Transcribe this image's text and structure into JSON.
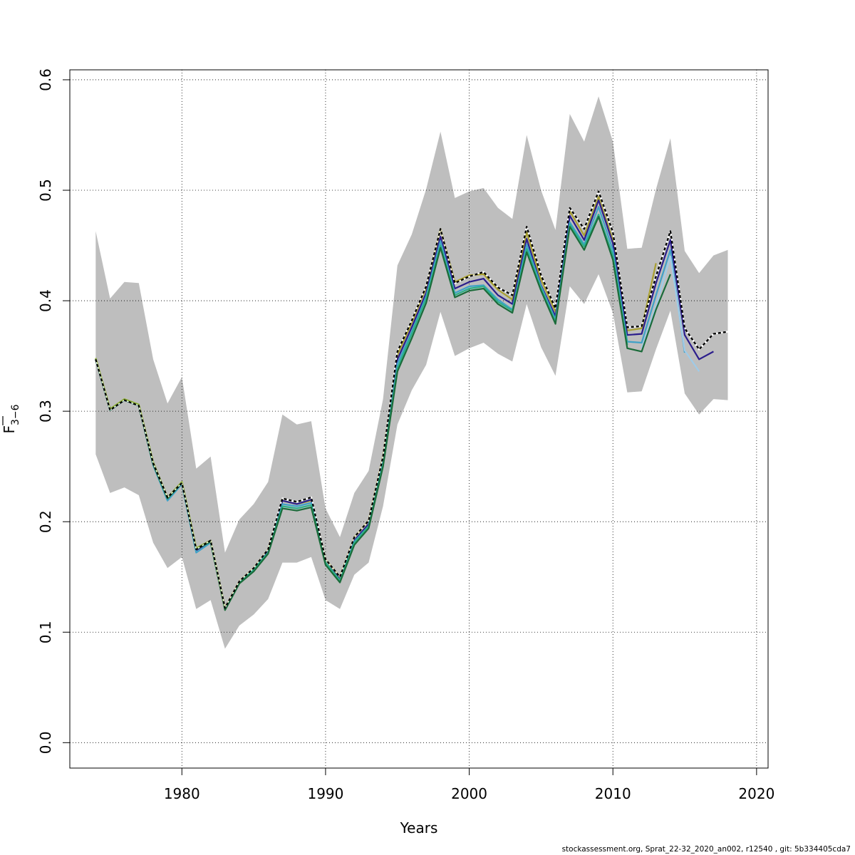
{
  "footer": "stockassessment.org, Sprat_22-32_2020_an002, r12540 , git: 5b334405cda7",
  "chart_data": {
    "type": "line",
    "title": "",
    "xlabel": "Years",
    "ylabel": "F",
    "ylabel_subscript": "3−6",
    "xlim": [
      1972.2,
      2020.8
    ],
    "ylim": [
      -0.023,
      0.609
    ],
    "xticks": [
      1980,
      1990,
      2000,
      2010,
      2020
    ],
    "xtick_labels": [
      "1980",
      "1990",
      "2000",
      "2010",
      "2020"
    ],
    "yticks": [
      0.0,
      0.1,
      0.2,
      0.3,
      0.4,
      0.5,
      0.6
    ],
    "ytick_labels": [
      "0.0",
      "0.1",
      "0.2",
      "0.3",
      "0.4",
      "0.5",
      "0.6"
    ],
    "grid": true,
    "band": {
      "color": "#bebebe",
      "x": [
        1974,
        1975,
        1976,
        1977,
        1978,
        1979,
        1980,
        1981,
        1982,
        1983,
        1984,
        1985,
        1986,
        1987,
        1988,
        1989,
        1990,
        1991,
        1992,
        1993,
        1994,
        1995,
        1996,
        1997,
        1998,
        1999,
        2000,
        2001,
        2002,
        2003,
        2004,
        2005,
        2006,
        2007,
        2008,
        2009,
        2010,
        2011,
        2012,
        2013,
        2014,
        2015,
        2016,
        2017,
        2018
      ],
      "upper": [
        0.463,
        0.402,
        0.417,
        0.416,
        0.347,
        0.307,
        0.331,
        0.248,
        0.259,
        0.172,
        0.202,
        0.216,
        0.236,
        0.297,
        0.288,
        0.291,
        0.212,
        0.186,
        0.226,
        0.246,
        0.311,
        0.432,
        0.46,
        0.501,
        0.553,
        0.493,
        0.499,
        0.502,
        0.484,
        0.474,
        0.55,
        0.5,
        0.464,
        0.569,
        0.544,
        0.585,
        0.544,
        0.447,
        0.448,
        0.501,
        0.547,
        0.445,
        0.425,
        0.441,
        0.446
      ],
      "lower": [
        0.261,
        0.226,
        0.231,
        0.224,
        0.181,
        0.158,
        0.168,
        0.121,
        0.129,
        0.085,
        0.106,
        0.116,
        0.13,
        0.163,
        0.163,
        0.168,
        0.129,
        0.121,
        0.152,
        0.163,
        0.214,
        0.288,
        0.319,
        0.342,
        0.39,
        0.35,
        0.357,
        0.362,
        0.352,
        0.345,
        0.397,
        0.358,
        0.332,
        0.413,
        0.397,
        0.424,
        0.389,
        0.317,
        0.318,
        0.356,
        0.391,
        0.316,
        0.297,
        0.311,
        0.31
      ]
    },
    "series": [
      {
        "color": "#000000",
        "width": 2.2,
        "dashed": true,
        "x": [
          1974,
          1975,
          1976,
          1977,
          1978,
          1979,
          1980,
          1981,
          1982,
          1983,
          1984,
          1985,
          1986,
          1987,
          1988,
          1989,
          1990,
          1991,
          1992,
          1993,
          1994,
          1995,
          1996,
          1997,
          1998,
          1999,
          2000,
          2001,
          2002,
          2003,
          2004,
          2005,
          2006,
          2007,
          2008,
          2009,
          2010,
          2011,
          2012,
          2013,
          2014,
          2015,
          2016,
          2017,
          2018
        ],
        "values": [
          0.347,
          0.301,
          0.31,
          0.305,
          0.253,
          0.222,
          0.235,
          0.175,
          0.183,
          0.122,
          0.146,
          0.158,
          0.175,
          0.221,
          0.218,
          0.222,
          0.166,
          0.15,
          0.186,
          0.201,
          0.259,
          0.354,
          0.382,
          0.413,
          0.465,
          0.416,
          0.422,
          0.426,
          0.412,
          0.405,
          0.467,
          0.423,
          0.393,
          0.484,
          0.465,
          0.499,
          0.462,
          0.376,
          0.377,
          0.422,
          0.463,
          0.375,
          0.356,
          0.37,
          0.372
        ]
      },
      {
        "color": "#a9a031",
        "width": 2.2,
        "dashed": false,
        "x": [
          1974,
          1975,
          1976,
          1977,
          1978,
          1979,
          1980,
          1981,
          1982,
          1983,
          1984,
          1985,
          1986,
          1987,
          1988,
          1989,
          1990,
          1991,
          1992,
          1993,
          1994,
          1995,
          1996,
          1997,
          1998,
          1999,
          2000,
          2001,
          2002,
          2003,
          2004,
          2005,
          2006,
          2007,
          2008,
          2009,
          2010,
          2011,
          2012,
          2013
        ],
        "values": [
          0.348,
          0.302,
          0.311,
          0.306,
          0.253,
          0.222,
          0.236,
          0.176,
          0.183,
          0.122,
          0.146,
          0.158,
          0.175,
          0.219,
          0.216,
          0.219,
          0.166,
          0.15,
          0.186,
          0.201,
          0.259,
          0.351,
          0.38,
          0.412,
          0.465,
          0.417,
          0.423,
          0.424,
          0.41,
          0.401,
          0.462,
          0.419,
          0.39,
          0.481,
          0.459,
          0.494,
          0.455,
          0.373,
          0.375,
          0.434
        ]
      },
      {
        "color": "#2b1d8c",
        "width": 2.2,
        "dashed": false,
        "x": [
          1974,
          1975,
          1976,
          1977,
          1978,
          1979,
          1980,
          1981,
          1982,
          1983,
          1984,
          1985,
          1986,
          1987,
          1988,
          1989,
          1990,
          1991,
          1992,
          1993,
          1994,
          1995,
          1996,
          1997,
          1998,
          1999,
          2000,
          2001,
          2002,
          2003,
          2004,
          2005,
          2006,
          2007,
          2008,
          2009,
          2010,
          2011,
          2012,
          2013,
          2014,
          2015,
          2016,
          2017
        ],
        "values": [
          0.347,
          0.301,
          0.31,
          0.305,
          0.252,
          0.221,
          0.235,
          0.174,
          0.182,
          0.121,
          0.145,
          0.157,
          0.173,
          0.219,
          0.216,
          0.22,
          0.163,
          0.148,
          0.183,
          0.198,
          0.255,
          0.347,
          0.376,
          0.407,
          0.458,
          0.411,
          0.417,
          0.42,
          0.405,
          0.397,
          0.456,
          0.414,
          0.386,
          0.477,
          0.455,
          0.491,
          0.452,
          0.369,
          0.37,
          0.416,
          0.455,
          0.369,
          0.347,
          0.354
        ]
      },
      {
        "color": "#3fa1c7",
        "width": 2.2,
        "dashed": false,
        "x": [
          1974,
          1975,
          1976,
          1977,
          1978,
          1979,
          1980,
          1981,
          1982,
          1983,
          1984,
          1985,
          1986,
          1987,
          1988,
          1989,
          1990,
          1991,
          1992,
          1993,
          1994,
          1995,
          1996,
          1997,
          1998,
          1999,
          2000,
          2001,
          2002,
          2003,
          2004,
          2005,
          2006,
          2007,
          2008,
          2009,
          2010,
          2011,
          2012,
          2013,
          2014,
          2015
        ],
        "values": [
          0.347,
          0.301,
          0.31,
          0.305,
          0.251,
          0.219,
          0.234,
          0.172,
          0.181,
          0.121,
          0.145,
          0.157,
          0.172,
          0.216,
          0.214,
          0.217,
          0.163,
          0.147,
          0.182,
          0.196,
          0.254,
          0.343,
          0.372,
          0.404,
          0.454,
          0.407,
          0.413,
          0.414,
          0.401,
          0.392,
          0.451,
          0.413,
          0.383,
          0.471,
          0.451,
          0.485,
          0.446,
          0.363,
          0.362,
          0.405,
          0.446,
          0.353
        ]
      },
      {
        "color": "#9fcbe8",
        "width": 2.2,
        "dashed": false,
        "x": [
          2012,
          2013,
          2014,
          2015,
          2016
        ],
        "values": [
          0.357,
          0.395,
          0.44,
          0.355,
          0.336
        ]
      },
      {
        "color": "#2bb089",
        "width": 2.2,
        "dashed": false,
        "x": [
          1974,
          1975,
          1976,
          1977,
          1978,
          1979,
          1980,
          1981,
          1982,
          1983,
          1984,
          1985,
          1986,
          1987,
          1988,
          1989,
          1990,
          1991,
          1992,
          1993,
          1994,
          1995,
          1996,
          1997,
          1998,
          1999,
          2000,
          2001,
          2002,
          2003,
          2004,
          2005,
          2006,
          2007,
          2008,
          2009,
          2010,
          2011
        ],
        "values": [
          0.347,
          0.301,
          0.31,
          0.305,
          0.252,
          0.221,
          0.235,
          0.175,
          0.182,
          0.121,
          0.145,
          0.157,
          0.172,
          0.214,
          0.212,
          0.215,
          0.163,
          0.147,
          0.181,
          0.196,
          0.252,
          0.339,
          0.37,
          0.402,
          0.45,
          0.405,
          0.411,
          0.413,
          0.399,
          0.391,
          0.447,
          0.411,
          0.381,
          0.469,
          0.449,
          0.478,
          0.441,
          0.36
        ]
      },
      {
        "color": "#1b6b3a",
        "width": 2.2,
        "dashed": false,
        "x": [
          1974,
          1975,
          1976,
          1977,
          1978,
          1979,
          1980,
          1981,
          1982,
          1983,
          1984,
          1985,
          1986,
          1987,
          1988,
          1989,
          1990,
          1991,
          1992,
          1993,
          1994,
          1995,
          1996,
          1997,
          1998,
          1999,
          2000,
          2001,
          2002,
          2003,
          2004,
          2005,
          2006,
          2007,
          2008,
          2009,
          2010,
          2011,
          2012,
          2013,
          2014
        ],
        "values": [
          0.347,
          0.301,
          0.31,
          0.305,
          0.252,
          0.221,
          0.235,
          0.175,
          0.182,
          0.12,
          0.144,
          0.155,
          0.171,
          0.212,
          0.21,
          0.213,
          0.161,
          0.145,
          0.179,
          0.194,
          0.25,
          0.336,
          0.366,
          0.398,
          0.448,
          0.403,
          0.409,
          0.411,
          0.397,
          0.389,
          0.444,
          0.409,
          0.379,
          0.467,
          0.446,
          0.476,
          0.437,
          0.357,
          0.354,
          0.392,
          0.424
        ]
      },
      {
        "color": "#8cb23a",
        "width": 2.2,
        "dashed": false,
        "x": [
          1974,
          1975,
          1976,
          1977,
          1978,
          1979,
          1980,
          1981,
          1982,
          1983
        ],
        "values": [
          0.348,
          0.302,
          0.311,
          0.306,
          0.254,
          0.222,
          0.236,
          0.176,
          0.183,
          0.122
        ]
      }
    ]
  }
}
